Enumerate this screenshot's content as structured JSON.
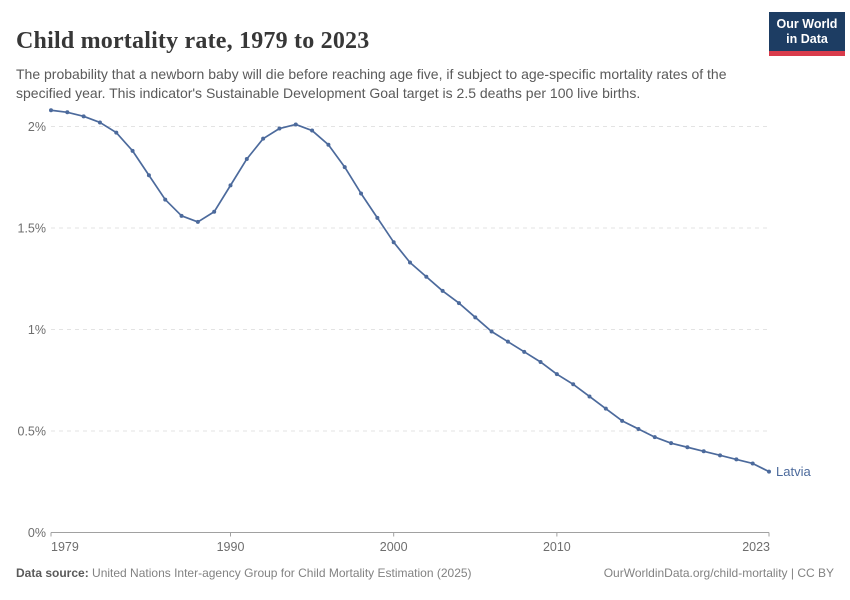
{
  "header": {
    "title": "Child mortality rate, 1979 to 2023",
    "subtitle": "The probability that a newborn baby will die before reaching age five, if subject to age-specific mortality rates of the specified year. This indicator's Sustainable Development Goal target is 2.5 deaths per 100 live births.",
    "logo": {
      "line1": "Our World",
      "line2": "in Data"
    }
  },
  "chart_data": {
    "type": "line",
    "title": "Child mortality rate, 1979 to 2023",
    "xlabel": "",
    "ylabel": "",
    "xlim": [
      1979,
      2023
    ],
    "ylim": [
      0,
      2.1
    ],
    "grid": "horizontal-dashed",
    "unit": "%",
    "x_ticks": [
      1979,
      1990,
      2000,
      2010,
      2023
    ],
    "y_ticks": [
      {
        "value": 0,
        "label": "0%"
      },
      {
        "value": 0.5,
        "label": "0.5%"
      },
      {
        "value": 1,
        "label": "1%"
      },
      {
        "value": 1.5,
        "label": "1.5%"
      },
      {
        "value": 2,
        "label": "2%"
      }
    ],
    "series": [
      {
        "name": "Latvia",
        "color": "#4c6a9c",
        "x": [
          1979,
          1980,
          1981,
          1982,
          1983,
          1984,
          1985,
          1986,
          1987,
          1988,
          1989,
          1990,
          1991,
          1992,
          1993,
          1994,
          1995,
          1996,
          1997,
          1998,
          1999,
          2000,
          2001,
          2002,
          2003,
          2004,
          2005,
          2006,
          2007,
          2008,
          2009,
          2010,
          2011,
          2012,
          2013,
          2014,
          2015,
          2016,
          2017,
          2018,
          2019,
          2020,
          2021,
          2022,
          2023
        ],
        "values": [
          2.08,
          2.07,
          2.05,
          2.02,
          1.97,
          1.88,
          1.76,
          1.64,
          1.56,
          1.53,
          1.58,
          1.71,
          1.84,
          1.94,
          1.99,
          2.01,
          1.98,
          1.91,
          1.8,
          1.67,
          1.55,
          1.43,
          1.33,
          1.26,
          1.19,
          1.13,
          1.06,
          0.99,
          0.94,
          0.89,
          0.84,
          0.78,
          0.73,
          0.67,
          0.61,
          0.55,
          0.51,
          0.47,
          0.44,
          0.42,
          0.4,
          0.38,
          0.36,
          0.34,
          0.3
        ]
      }
    ]
  },
  "footer": {
    "datasource_label": "Data source:",
    "datasource_text": " United Nations Inter-agency Group for Child Mortality Estimation (2025)",
    "link_text": "OurWorldinData.org/child-mortality | CC BY"
  },
  "colors": {
    "line": "#4c6a9c",
    "entity_label": "#4c6a9c",
    "grid": "#e3e3e3",
    "axis": "#a1a1a1",
    "tick_text": "#6e6e6e",
    "logo_bg": "#1d3d63",
    "logo_stripe": "#d93b4b"
  }
}
